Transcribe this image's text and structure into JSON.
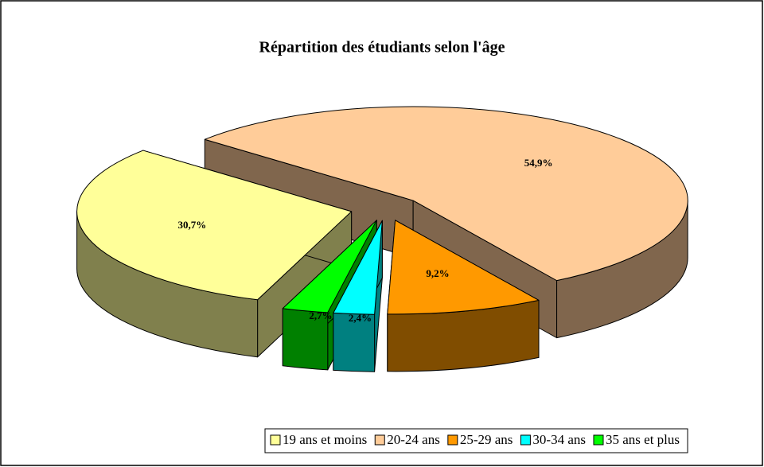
{
  "chart_data": {
    "type": "pie",
    "title": "Répartition des étudiants selon l'âge",
    "categories": [
      "19 ans et moins",
      "20-24 ans",
      "25-29 ans",
      "30-34 ans",
      "35 ans et plus"
    ],
    "values": [
      30.7,
      54.9,
      9.2,
      2.4,
      2.7
    ],
    "value_labels": [
      "30,7%",
      "54,9%",
      "9,2%",
      "2,4%",
      "2,7%"
    ],
    "colors": [
      "#ffff99",
      "#ffcc99",
      "#ff9900",
      "#00ffff",
      "#00ff00"
    ],
    "legend": "bottom"
  }
}
